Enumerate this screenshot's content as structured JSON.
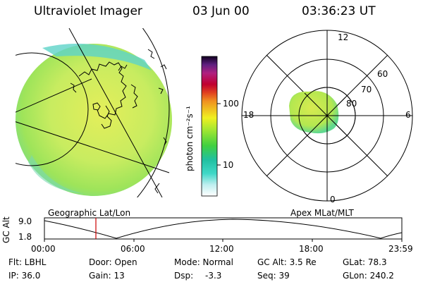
{
  "header": {
    "title": "Ultraviolet Imager",
    "date": "03 Jun 00",
    "time": "03:36:23 UT"
  },
  "colorbar": {
    "unit_label": "photon cm⁻²s⁻¹",
    "ticks": [
      "100",
      "10"
    ]
  },
  "polar": {
    "mlt_labels": {
      "top": "12",
      "left": "18",
      "right": "6",
      "bottom": "0"
    },
    "lat_labels": [
      "60",
      "70",
      "80"
    ]
  },
  "panel_labels": {
    "left": "Geographic Lat/Lon",
    "right": "Apex MLat/MLT"
  },
  "timeline": {
    "ylabel": "GC Alt",
    "ytick_top": "9.0",
    "ytick_bottom": "1.8",
    "xticks": [
      "00:00",
      "06:00",
      "12:00",
      "18:00",
      "23:59"
    ],
    "marker_color": "#cc0000"
  },
  "footer": {
    "filter": "Flt: LBHL",
    "door": "Door: Open",
    "mode": "Mode: Normal",
    "gc_alt": "GC Alt: 3.5 Re",
    "glat": "GLat: 78.3",
    "ip": "IP: 36.0",
    "gain": "Gain: 13",
    "dsp_label": "Dsp:",
    "dsp_value": "-3.3",
    "seq": "Seq: 39",
    "glon": "GLon: 240.2"
  }
}
